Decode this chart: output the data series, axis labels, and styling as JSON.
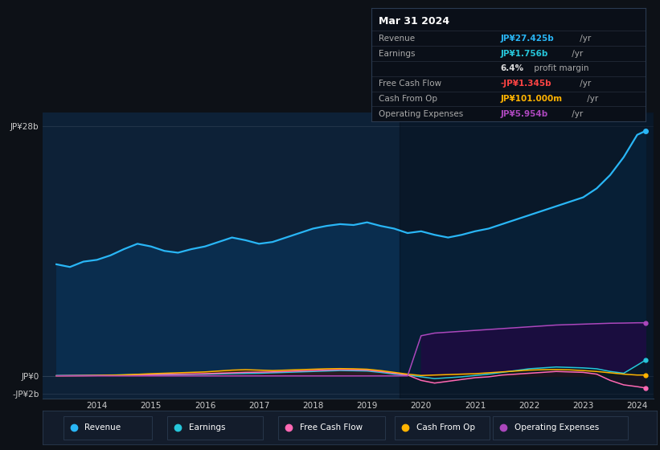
{
  "background_color": "#0d1117",
  "plot_bg_color": "#0d2137",
  "plot_bg_dark": "#071523",
  "years": [
    2013.25,
    2013.5,
    2013.75,
    2014.0,
    2014.25,
    2014.5,
    2014.75,
    2015.0,
    2015.25,
    2015.5,
    2015.75,
    2016.0,
    2016.25,
    2016.5,
    2016.75,
    2017.0,
    2017.25,
    2017.5,
    2017.75,
    2018.0,
    2018.25,
    2018.5,
    2018.75,
    2019.0,
    2019.25,
    2019.5,
    2019.75,
    2020.0,
    2020.25,
    2020.5,
    2020.75,
    2021.0,
    2021.25,
    2021.5,
    2021.75,
    2022.0,
    2022.25,
    2022.5,
    2022.75,
    2023.0,
    2023.25,
    2023.5,
    2023.75,
    2024.0,
    2024.15
  ],
  "revenue": [
    12.5,
    12.2,
    12.8,
    13.0,
    13.5,
    14.2,
    14.8,
    14.5,
    14.0,
    13.8,
    14.2,
    14.5,
    15.0,
    15.5,
    15.2,
    14.8,
    15.0,
    15.5,
    16.0,
    16.5,
    16.8,
    17.0,
    16.9,
    17.2,
    16.8,
    16.5,
    16.0,
    16.2,
    15.8,
    15.5,
    15.8,
    16.2,
    16.5,
    17.0,
    17.5,
    18.0,
    18.5,
    19.0,
    19.5,
    20.0,
    21.0,
    22.5,
    24.5,
    27.0,
    27.425
  ],
  "earnings": [
    0.05,
    0.06,
    0.07,
    0.08,
    0.1,
    0.12,
    0.14,
    0.15,
    0.16,
    0.17,
    0.18,
    0.19,
    0.22,
    0.25,
    0.28,
    0.3,
    0.35,
    0.4,
    0.45,
    0.5,
    0.55,
    0.6,
    0.58,
    0.55,
    0.4,
    0.2,
    0.1,
    -0.1,
    -0.3,
    -0.2,
    -0.1,
    0.05,
    0.2,
    0.4,
    0.6,
    0.8,
    0.9,
    1.0,
    0.95,
    0.9,
    0.8,
    0.5,
    0.3,
    1.2,
    1.756
  ],
  "free_cash_flow": [
    0.02,
    0.03,
    0.04,
    0.05,
    0.08,
    0.1,
    0.12,
    0.15,
    0.18,
    0.2,
    0.22,
    0.25,
    0.3,
    0.35,
    0.4,
    0.42,
    0.45,
    0.5,
    0.55,
    0.6,
    0.65,
    0.7,
    0.68,
    0.65,
    0.5,
    0.3,
    0.1,
    -0.5,
    -0.8,
    -0.6,
    -0.4,
    -0.2,
    -0.1,
    0.1,
    0.2,
    0.3,
    0.4,
    0.5,
    0.45,
    0.4,
    0.2,
    -0.5,
    -1.0,
    -1.2,
    -1.345
  ],
  "cash_from_op": [
    0.01,
    0.02,
    0.03,
    0.05,
    0.08,
    0.12,
    0.18,
    0.25,
    0.3,
    0.35,
    0.4,
    0.45,
    0.55,
    0.65,
    0.7,
    0.65,
    0.6,
    0.65,
    0.7,
    0.75,
    0.8,
    0.82,
    0.8,
    0.75,
    0.6,
    0.4,
    0.2,
    0.05,
    0.1,
    0.15,
    0.2,
    0.25,
    0.35,
    0.45,
    0.55,
    0.65,
    0.7,
    0.72,
    0.68,
    0.6,
    0.5,
    0.35,
    0.2,
    0.1,
    0.101
  ],
  "op_expenses": [
    0.0,
    0.0,
    0.0,
    0.0,
    0.0,
    0.0,
    0.0,
    0.0,
    0.0,
    0.0,
    0.0,
    0.0,
    0.0,
    0.0,
    0.0,
    0.0,
    0.0,
    0.0,
    0.0,
    0.0,
    0.0,
    0.0,
    0.0,
    0.0,
    0.0,
    0.0,
    0.0,
    4.5,
    4.8,
    4.9,
    5.0,
    5.1,
    5.2,
    5.3,
    5.4,
    5.5,
    5.6,
    5.7,
    5.75,
    5.8,
    5.85,
    5.9,
    5.92,
    5.95,
    5.954
  ],
  "ylim": [
    -2.5,
    29.5
  ],
  "yticks": [
    -2,
    0,
    28
  ],
  "ytick_labels": [
    "-JP¥2b",
    "JP¥0",
    "JP¥28b"
  ],
  "xticks": [
    2014,
    2015,
    2016,
    2017,
    2018,
    2019,
    2020,
    2021,
    2022,
    2023,
    2024
  ],
  "xtick_labels": [
    "2014",
    "2015",
    "2016",
    "2017",
    "2018",
    "2019",
    "2020",
    "2021",
    "2022",
    "2023",
    "2024"
  ],
  "revenue_color": "#29b6f6",
  "earnings_color": "#26c6da",
  "free_cash_flow_color": "#ff69b4",
  "cash_from_op_color": "#ffb300",
  "op_expenses_color": "#ab47bc",
  "revenue_fill_color": "#0a2d4e",
  "op_expenses_fill_color": "#2d0d5e",
  "legend_bg_color": "#131c2b",
  "legend_border_color": "#2a3a50",
  "tooltip_bg_color": "#0a0f18",
  "tooltip_border_color": "#2a3a50",
  "tooltip_title": "Mar 31 2024",
  "legend_items": [
    {
      "label": "Revenue",
      "color": "#29b6f6"
    },
    {
      "label": "Earnings",
      "color": "#26c6da"
    },
    {
      "label": "Free Cash Flow",
      "color": "#ff69b4"
    },
    {
      "label": "Cash From Op",
      "color": "#ffb300"
    },
    {
      "label": "Operating Expenses",
      "color": "#ab47bc"
    }
  ],
  "dark_overlay_start": 2019.6
}
